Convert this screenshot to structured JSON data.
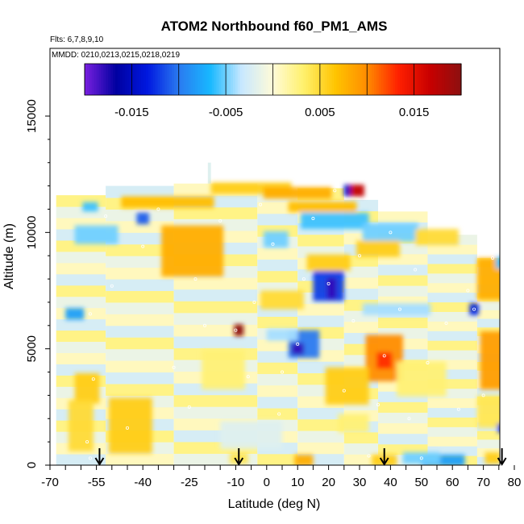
{
  "chart_data": {
    "type": "heatmap",
    "title": "ATOM2 Northbound f60_PM1_AMS",
    "flights_label": "Flts: 6,7,8,9,10",
    "dates_label": "MMDD: 0210,0213,0215,0218,0219",
    "xlabel": "Latitude (deg N)",
    "ylabel": "Altitude (m)",
    "xlim": [
      -70,
      85
    ],
    "ylim": [
      0,
      17500
    ],
    "x_ticks": [
      {
        "value": -70,
        "label": "-70"
      },
      {
        "value": -55,
        "label": "-55"
      },
      {
        "value": -40,
        "label": "-40"
      },
      {
        "value": -25,
        "label": "-25"
      },
      {
        "value": -10,
        "label": "-10"
      },
      {
        "value": 0,
        "label": "0"
      },
      {
        "value": 10,
        "label": "10"
      },
      {
        "value": 20,
        "label": "20"
      },
      {
        "value": 30,
        "label": "30"
      },
      {
        "value": 40,
        "label": "40"
      },
      {
        "value": 50,
        "label": "50"
      },
      {
        "value": 60,
        "label": "60"
      },
      {
        "value": 70,
        "label": "70"
      },
      {
        "value": 80,
        "label": "80"
      }
    ],
    "y_ticks": [
      {
        "value": 0,
        "label": "0"
      },
      {
        "value": 5000,
        "label": "5000"
      },
      {
        "value": 10000,
        "label": "10000"
      },
      {
        "value": 15000,
        "label": "15000"
      }
    ],
    "colorbar": {
      "range": [
        -0.02,
        0.02
      ],
      "boundaries": [
        -0.02,
        -0.015,
        -0.01,
        -0.005,
        0,
        0.005,
        0.01,
        0.015,
        0.02
      ],
      "tick_labels": [
        {
          "value": -0.015,
          "label": "-0.015"
        },
        {
          "value": -0.005,
          "label": "-0.005"
        },
        {
          "value": 0.005,
          "label": "0.005"
        },
        {
          "value": 0.015,
          "label": "0.015"
        }
      ],
      "colors": [
        "#7a20e0",
        "#0000a0",
        "#0018e0",
        "#2a7af0",
        "#18b8ff",
        "#c8e8ff",
        "#fffbd8",
        "#fff06a",
        "#ffc400",
        "#ff8c00",
        "#ff2000",
        "#c80000",
        "#8c1010"
      ]
    },
    "arrow_latitudes": [
      -54,
      -9,
      38,
      76
    ],
    "tallest_column_top_altitude": 13000,
    "lat_bands": [
      {
        "lat0": -68,
        "lat1": -52,
        "top": 11600
      },
      {
        "lat0": -52,
        "lat1": -30,
        "top": 12000
      },
      {
        "lat0": -30,
        "lat1": -3,
        "top": 12100
      },
      {
        "lat0": -3,
        "lat1": 10,
        "top": 11800
      },
      {
        "lat0": 10,
        "lat1": 25,
        "top": 11900
      },
      {
        "lat0": 25,
        "lat1": 36,
        "top": 11400
      },
      {
        "lat0": 36,
        "lat1": 52,
        "top": 10900
      },
      {
        "lat0": 52,
        "lat1": 68,
        "top": 9900
      },
      {
        "lat0": 68,
        "lat1": 81,
        "top": 8900
      }
    ],
    "anomalies": [
      {
        "lat": -24,
        "alt": 9200,
        "w": 20,
        "h": 2200,
        "value": 0.008
      },
      {
        "lat": -44,
        "alt": 1700,
        "w": 14,
        "h": 2400,
        "value": 0.006
      },
      {
        "lat": -58,
        "alt": 3300,
        "w": 8,
        "h": 1300,
        "value": 0.006
      },
      {
        "lat": -55,
        "alt": 9900,
        "w": 14,
        "h": 800,
        "value": -0.005
      },
      {
        "lat": -62,
        "alt": 6500,
        "w": 6,
        "h": 500,
        "value": -0.008
      },
      {
        "lat": -57,
        "alt": 11100,
        "w": 5,
        "h": 400,
        "value": -0.006
      },
      {
        "lat": -40,
        "alt": 10600,
        "w": 4,
        "h": 500,
        "value": -0.011
      },
      {
        "lat": -32,
        "alt": 11300,
        "w": 30,
        "h": 500,
        "value": 0.007
      },
      {
        "lat": -5,
        "alt": 11900,
        "w": 26,
        "h": 500,
        "value": 0.006
      },
      {
        "lat": 10,
        "alt": 11700,
        "w": 22,
        "h": 500,
        "value": 0.008
      },
      {
        "lat": 29,
        "alt": 11800,
        "w": 5,
        "h": 500,
        "value": 0.017
      },
      {
        "lat": 26,
        "alt": 11800,
        "w": 2,
        "h": 500,
        "value": -0.015
      },
      {
        "lat": 18,
        "alt": 11100,
        "w": 22,
        "h": 450,
        "value": 0.007
      },
      {
        "lat": 22,
        "alt": 10500,
        "w": 22,
        "h": 700,
        "value": -0.006
      },
      {
        "lat": 40,
        "alt": 10000,
        "w": 18,
        "h": 800,
        "value": -0.005
      },
      {
        "lat": 36,
        "alt": 9300,
        "w": 14,
        "h": 700,
        "value": 0.006
      },
      {
        "lat": 55,
        "alt": 9800,
        "w": 14,
        "h": 700,
        "value": 0.005
      },
      {
        "lat": 3,
        "alt": 9700,
        "w": 8,
        "h": 700,
        "value": -0.005
      },
      {
        "lat": 20,
        "alt": 8700,
        "w": 14,
        "h": 700,
        "value": 0.006
      },
      {
        "lat": 20,
        "alt": 7700,
        "w": 10,
        "h": 1300,
        "value": -0.012
      },
      {
        "lat": 21,
        "alt": 7600,
        "w": 3,
        "h": 900,
        "value": -0.018
      },
      {
        "lat": 74,
        "alt": 8000,
        "w": 12,
        "h": 1800,
        "value": 0.008
      },
      {
        "lat": 76,
        "alt": 8700,
        "w": 4,
        "h": 500,
        "value": -0.006
      },
      {
        "lat": 67,
        "alt": 6700,
        "w": 3,
        "h": 500,
        "value": -0.013
      },
      {
        "lat": 42,
        "alt": 6700,
        "w": 22,
        "h": 500,
        "value": -0.004
      },
      {
        "lat": 5,
        "alt": 7100,
        "w": 14,
        "h": 800,
        "value": 0.005
      },
      {
        "lat": -9,
        "alt": 5800,
        "w": 3,
        "h": 500,
        "value": 0.02
      },
      {
        "lat": 12,
        "alt": 5200,
        "w": 10,
        "h": 1200,
        "value": -0.01
      },
      {
        "lat": 10,
        "alt": 5000,
        "w": 4,
        "h": 500,
        "value": -0.018
      },
      {
        "lat": 5,
        "alt": 5600,
        "w": 10,
        "h": 500,
        "value": -0.004
      },
      {
        "lat": 38,
        "alt": 4600,
        "w": 12,
        "h": 2000,
        "value": 0.01
      },
      {
        "lat": 38,
        "alt": 4500,
        "w": 5,
        "h": 700,
        "value": 0.013
      },
      {
        "lat": 75,
        "alt": 4500,
        "w": 12,
        "h": 2500,
        "value": 0.009
      },
      {
        "lat": 74,
        "alt": 2300,
        "w": 12,
        "h": 1400,
        "value": 0.004
      },
      {
        "lat": 26,
        "alt": 3400,
        "w": 14,
        "h": 1600,
        "value": 0.006
      },
      {
        "lat": 50,
        "alt": 3700,
        "w": 16,
        "h": 1500,
        "value": 0.003
      },
      {
        "lat": 77,
        "alt": 1600,
        "w": 5,
        "h": 400,
        "value": -0.012
      },
      {
        "lat": -14,
        "alt": 4100,
        "w": 14,
        "h": 1700,
        "value": 0.003
      },
      {
        "lat": -60,
        "alt": 1700,
        "w": 8,
        "h": 2200,
        "value": 0.005
      },
      {
        "lat": 12,
        "alt": 200,
        "w": 6,
        "h": 500,
        "value": 0.008
      },
      {
        "lat": 57,
        "alt": 200,
        "w": 14,
        "h": 500,
        "value": -0.008
      },
      {
        "lat": 50,
        "alt": 300,
        "w": 12,
        "h": 500,
        "value": -0.005
      },
      {
        "lat": 38,
        "alt": 200,
        "w": 8,
        "h": 500,
        "value": 0.006
      },
      {
        "lat": -9,
        "alt": 300,
        "w": 6,
        "h": 500,
        "value": 0.004
      },
      {
        "lat": 73,
        "alt": 300,
        "w": 5,
        "h": 500,
        "value": 0.006
      },
      {
        "lat": 28,
        "alt": 1800,
        "w": 10,
        "h": 800,
        "value": 0.003
      },
      {
        "lat": -5,
        "alt": 1300,
        "w": 20,
        "h": 1200,
        "value": -0.002
      }
    ],
    "sample_points": [
      [
        -57,
        300
      ],
      [
        -58,
        1000
      ],
      [
        -56,
        3700
      ],
      [
        -57,
        6500
      ],
      [
        -50,
        7700
      ],
      [
        -52,
        10700
      ],
      [
        -45,
        1600
      ],
      [
        -40,
        9400
      ],
      [
        -35,
        11000
      ],
      [
        -30,
        4200
      ],
      [
        -25,
        2500
      ],
      [
        -23,
        8000
      ],
      [
        -20,
        6000
      ],
      [
        -15,
        10500
      ],
      [
        -10,
        5800
      ],
      [
        -6,
        3800
      ],
      [
        -4,
        7000
      ],
      [
        -2,
        11200
      ],
      [
        2,
        9500
      ],
      [
        4,
        2200
      ],
      [
        5,
        4000
      ],
      [
        10,
        5200
      ],
      [
        12,
        8000
      ],
      [
        15,
        10600
      ],
      [
        20,
        7800
      ],
      [
        22,
        11800
      ],
      [
        25,
        3200
      ],
      [
        28,
        6200
      ],
      [
        30,
        9000
      ],
      [
        33,
        400
      ],
      [
        36,
        2600
      ],
      [
        38,
        4700
      ],
      [
        40,
        10000
      ],
      [
        43,
        6700
      ],
      [
        46,
        2000
      ],
      [
        48,
        8400
      ],
      [
        50,
        300
      ],
      [
        52,
        4400
      ],
      [
        55,
        11000
      ],
      [
        58,
        6100
      ],
      [
        62,
        2400
      ],
      [
        65,
        7500
      ],
      [
        67,
        6700
      ],
      [
        70,
        3000
      ],
      [
        73,
        8900
      ],
      [
        76,
        1800
      ],
      [
        77,
        4700
      ],
      [
        78,
        300
      ]
    ]
  }
}
